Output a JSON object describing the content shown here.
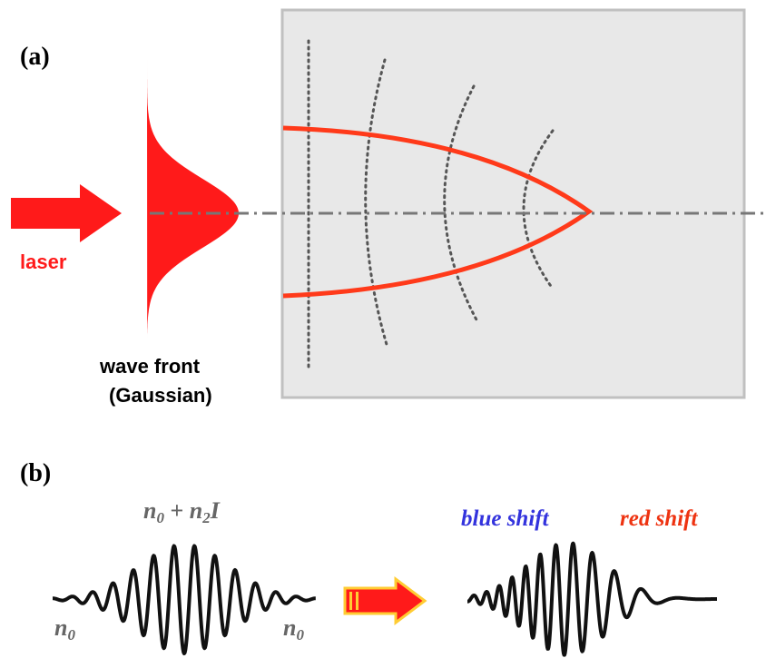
{
  "panel_a": {
    "label": "(a)",
    "laser_label": "laser",
    "wavefront_caption_line1": "wave front",
    "wavefront_caption_line2": "(Gaussian)"
  },
  "panel_b": {
    "label": "(b)",
    "center_index": {
      "base": "n",
      "base_sub": "0",
      "plus": " + ",
      "coef": "n",
      "coef_sub": "2",
      "intensity": "I"
    },
    "left_index": {
      "base": "n",
      "sub": "0"
    },
    "right_index": {
      "base": "n",
      "sub": "0"
    },
    "blue_shift_label": "blue shift",
    "red_shift_label": "red shift"
  },
  "colors": {
    "laser_red": "#ff1a1a",
    "beam_orange": "#ff3a1a",
    "index_gray": "#666666",
    "blue_label": "#3333dd",
    "red_label": "#ee3311",
    "box_fill": "#e8e8e8",
    "box_border": "#c0c0c0",
    "dotted": "#555555",
    "axis": "#777777"
  }
}
